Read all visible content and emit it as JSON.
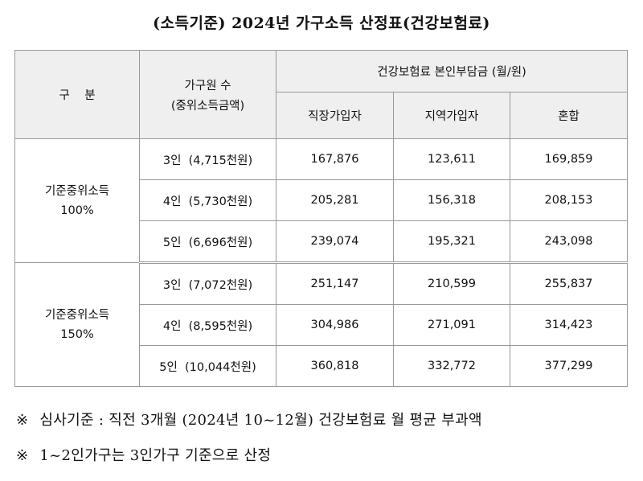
{
  "title": "(소득기준) 2024년 가구소득 산정표(건강보험료)",
  "table": {
    "headers": {
      "category": "구    분",
      "household_line1": "가구원 수",
      "household_line2": "(중위소득금액)",
      "premium_group": "건강보험료 본인부담금 (월/원)",
      "employee": "직장가입자",
      "regional": "지역가입자",
      "mixed": "혼합"
    },
    "groups": [
      {
        "label_line1": "기준중위소득",
        "label_line2": "100%",
        "rows": [
          {
            "household": "3인  (4,715천원)",
            "employee": "167,876",
            "regional": "123,611",
            "mixed": "169,859"
          },
          {
            "household": "4인  (5,730천원)",
            "employee": "205,281",
            "regional": "156,318",
            "mixed": "208,153"
          },
          {
            "household": "5인  (6,696천원)",
            "employee": "239,074",
            "regional": "195,321",
            "mixed": "243,098"
          }
        ]
      },
      {
        "label_line1": "기준중위소득",
        "label_line2": "150%",
        "rows": [
          {
            "household": "3인  (7,072천원)",
            "employee": "251,147",
            "regional": "210,599",
            "mixed": "255,837"
          },
          {
            "household": "4인  (8,595천원)",
            "employee": "304,986",
            "regional": "271,091",
            "mixed": "314,423"
          },
          {
            "household": "5인  (10,044천원)",
            "employee": "360,818",
            "regional": "332,772",
            "mixed": "377,299"
          }
        ]
      }
    ]
  },
  "notes": [
    {
      "mark": "※",
      "text": "심사기준 : 직전 3개월 (2024년 10~12월) 건강보험료 월 평균 부과액"
    },
    {
      "mark": "※",
      "text": "1~2인가구는 3인가구 기준으로 산정"
    }
  ]
}
